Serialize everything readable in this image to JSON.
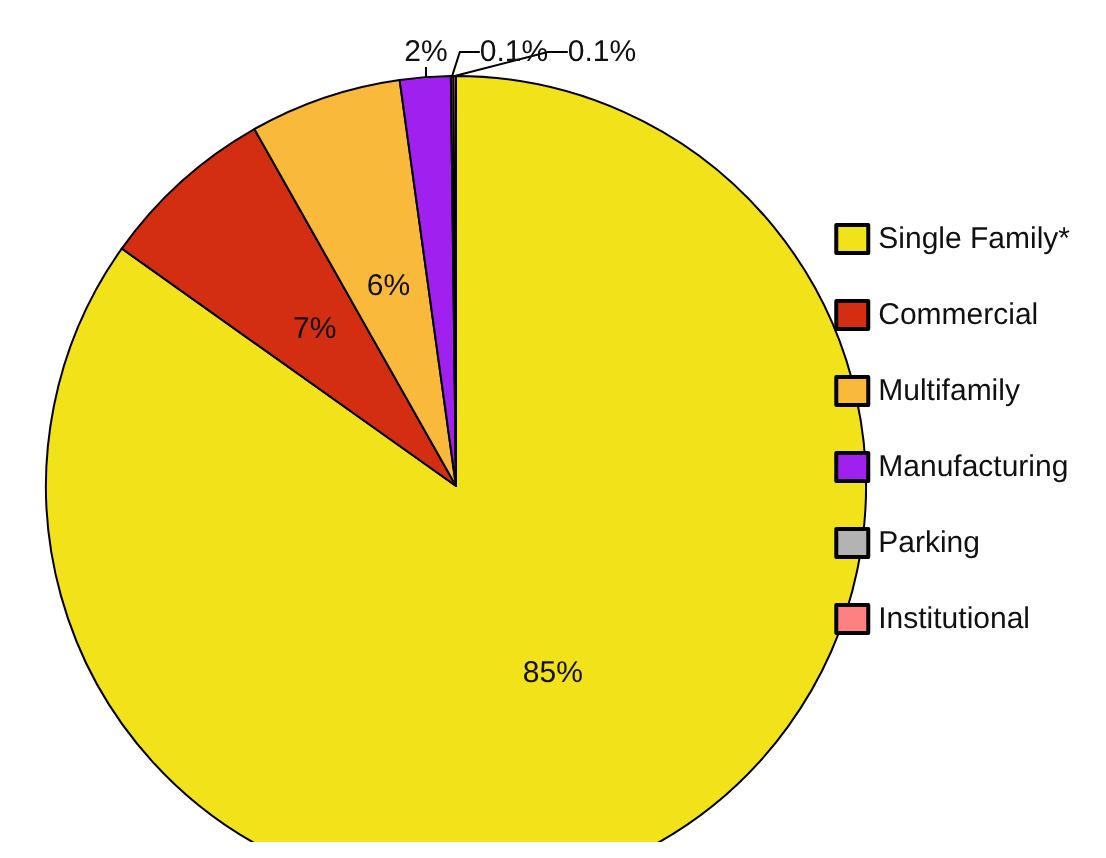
{
  "chart_data": {
    "type": "pie",
    "categories": [
      "Single Family*",
      "Commercial",
      "Multifamily",
      "Manufacturing",
      "Parking",
      "Institutional"
    ],
    "values": [
      85,
      7,
      6,
      2,
      0.1,
      0.1
    ],
    "colors": [
      "#f2e21a",
      "#d42e12",
      "#f9b93a",
      "#a020f0",
      "#b3b3b3",
      "#ff8080"
    ],
    "value_labels": [
      "85%",
      "7%",
      "6%",
      "2%",
      "0.1%",
      "0.1%"
    ],
    "legend": "right"
  }
}
